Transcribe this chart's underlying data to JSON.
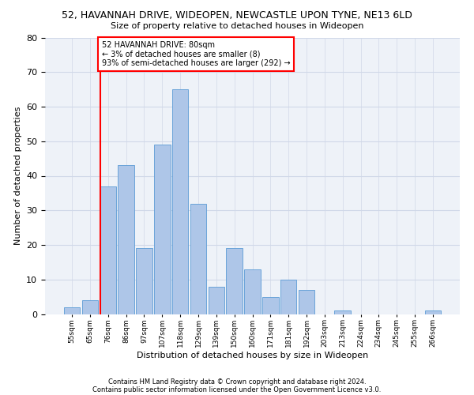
{
  "title1": "52, HAVANNAH DRIVE, WIDEOPEN, NEWCASTLE UPON TYNE, NE13 6LD",
  "title2": "Size of property relative to detached houses in Wideopen",
  "xlabel": "Distribution of detached houses by size in Wideopen",
  "ylabel": "Number of detached properties",
  "categories": [
    "55sqm",
    "65sqm",
    "76sqm",
    "86sqm",
    "97sqm",
    "107sqm",
    "118sqm",
    "129sqm",
    "139sqm",
    "150sqm",
    "160sqm",
    "171sqm",
    "181sqm",
    "192sqm",
    "203sqm",
    "213sqm",
    "224sqm",
    "234sqm",
    "245sqm",
    "255sqm",
    "266sqm"
  ],
  "values": [
    2,
    4,
    37,
    43,
    19,
    49,
    65,
    32,
    8,
    19,
    13,
    5,
    10,
    7,
    0,
    1,
    0,
    0,
    0,
    0,
    1
  ],
  "bar_color": "#aec6e8",
  "bar_edge_color": "#5b9bd5",
  "redline_index": 2,
  "annotation_text": "52 HAVANNAH DRIVE: 80sqm\n← 3% of detached houses are smaller (8)\n93% of semi-detached houses are larger (292) →",
  "annotation_box_color": "white",
  "annotation_box_edge_color": "red",
  "redline_color": "red",
  "ylim": [
    0,
    80
  ],
  "yticks": [
    0,
    10,
    20,
    30,
    40,
    50,
    60,
    70,
    80
  ],
  "grid_color": "#d0d8e8",
  "bg_color": "#eef2f8",
  "footer1": "Contains HM Land Registry data © Crown copyright and database right 2024.",
  "footer2": "Contains public sector information licensed under the Open Government Licence v3.0."
}
